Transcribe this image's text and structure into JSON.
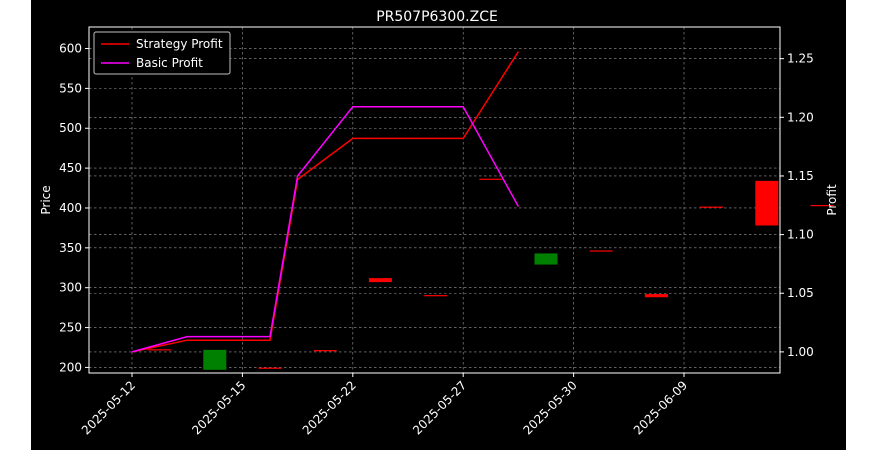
{
  "chart_data": {
    "type": "line",
    "title": "PR507P6300.ZCE",
    "xlabel": "",
    "ylabel_left": "Price",
    "ylabel_right": "Profit",
    "x_tick_labels": [
      "2025-05-12",
      "2025-05-15",
      "2025-05-22",
      "2025-05-27",
      "2025-05-30",
      "2025-06-09"
    ],
    "ylim_left": [
      193,
      627
    ],
    "yticks_left": [
      200,
      250,
      300,
      350,
      400,
      450,
      500,
      550,
      600
    ],
    "ylim_right": [
      0.982,
      1.277
    ],
    "yticks_right": [
      "1.00",
      "1.05",
      "1.10",
      "1.15",
      "1.20",
      "1.25"
    ],
    "grid": true,
    "legend_position": "top-left",
    "candles": [
      {
        "i": 0,
        "open": 222,
        "close": 222,
        "color": "#ff0000"
      },
      {
        "i": 1,
        "open": 222,
        "close": 197,
        "color": "#008000"
      },
      {
        "i": 2,
        "open": 199,
        "close": 199,
        "color": "#ff0000"
      },
      {
        "i": 3,
        "open": 221,
        "close": 221,
        "color": "#ff0000"
      },
      {
        "i": 4,
        "open": 312,
        "close": 307,
        "color": "#ff0000"
      },
      {
        "i": 5,
        "open": 290,
        "close": 290,
        "color": "#ff0000"
      },
      {
        "i": 6,
        "open": 436,
        "close": 436,
        "color": "#ff0000"
      },
      {
        "i": 7,
        "open": 343,
        "close": 329,
        "color": "#008000"
      },
      {
        "i": 8,
        "open": 346,
        "close": 346,
        "color": "#ff0000"
      },
      {
        "i": 9,
        "open": 292,
        "close": 288,
        "color": "#ff0000"
      },
      {
        "i": 10,
        "open": 401,
        "close": 401,
        "color": "#ff0000"
      },
      {
        "i": 11,
        "open": 434,
        "close": 378,
        "color": "#ff0000"
      },
      {
        "i": 12,
        "open": 403,
        "close": 403,
        "color": "#ff0000"
      }
    ],
    "series": [
      {
        "name": "Strategy Profit",
        "color": "#ff0000",
        "axis": "right",
        "points": [
          [
            0,
            1.0
          ],
          [
            2,
            1.01
          ],
          [
            5,
            1.01
          ],
          [
            6,
            1.147
          ],
          [
            8,
            1.182
          ],
          [
            12,
            1.182
          ],
          [
            14,
            1.256
          ]
        ]
      },
      {
        "name": "Basic Profit",
        "color": "#ff00ff",
        "axis": "right",
        "points": [
          [
            0,
            1.0
          ],
          [
            2,
            1.013
          ],
          [
            5,
            1.013
          ],
          [
            6,
            1.15
          ],
          [
            8,
            1.209
          ],
          [
            12,
            1.209
          ],
          [
            14,
            1.124
          ]
        ]
      }
    ]
  }
}
